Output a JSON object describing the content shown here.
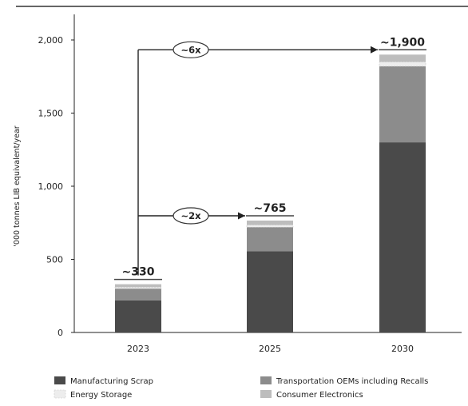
{
  "chart_data": {
    "type": "bar",
    "stacked": true,
    "ylabel": "'000 tonnes LIB equivalent/year",
    "ylim": [
      0,
      2000
    ],
    "yticks": [
      0,
      500,
      1000,
      1500,
      2000
    ],
    "ytick_labels": [
      "0",
      "500",
      "1,000",
      "1,500",
      "2,000"
    ],
    "categories": [
      "2023",
      "2025",
      "2030"
    ],
    "series": [
      {
        "name": "Manufacturing Scrap",
        "values": [
          220,
          555,
          1300
        ],
        "color": "#4a4a4a"
      },
      {
        "name": "Transportation OEMs including Recalls",
        "values": [
          80,
          165,
          520
        ],
        "color": "#8c8c8c"
      },
      {
        "name": "Energy Storage",
        "values": [
          10,
          15,
          30
        ],
        "color": "#ededed"
      },
      {
        "name": "Consumer Electronics",
        "values": [
          20,
          30,
          50
        ],
        "color": "#bdbdbd"
      }
    ],
    "totals": [
      "~330",
      "~765",
      "~1,900"
    ],
    "annotations": [
      {
        "label": "~2x",
        "from": "2023",
        "to": "2025",
        "level": 765
      },
      {
        "label": "~6x",
        "from": "2023",
        "to": "2030",
        "level": 1900
      }
    ],
    "legend": {
      "placement": "bottom",
      "columns": [
        [
          "Manufacturing Scrap",
          "Energy Storage"
        ],
        [
          "Transportation OEMs including Recalls",
          "Consumer Electronics"
        ]
      ]
    },
    "grid": false
  }
}
